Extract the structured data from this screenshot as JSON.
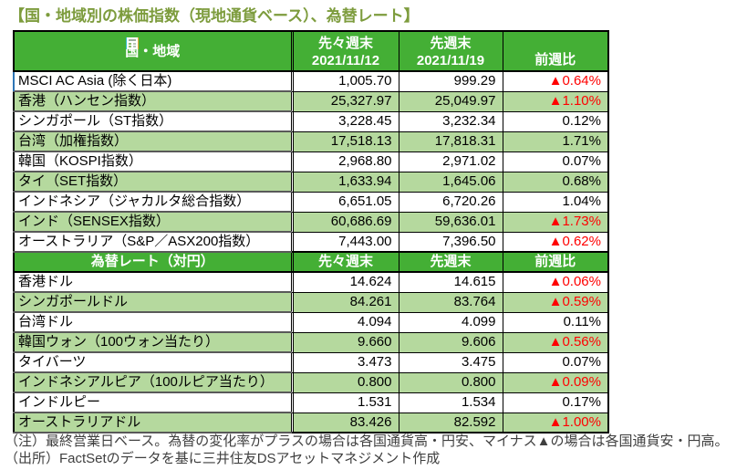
{
  "title": "【国・地域別の株価指数（現地通貨ベース）、為替レート】",
  "colors": {
    "header_green": "#44af35",
    "row_alt_green": "#b5d99e",
    "negative_red": "#ff0000",
    "title_olive": "#7d9c3d",
    "name_divider_gray": "#595959",
    "selection_blue": "#2e75b6"
  },
  "stock_table": {
    "headers": {
      "col1": "国・地域",
      "col2_line1": "先々週末",
      "col2_line2": "2021/11/12",
      "col3_line1": "先週末",
      "col3_line2": "2021/11/19",
      "col4": "前週比"
    },
    "rows": [
      {
        "name": "MSCI AC Asia (除く日本)",
        "prev": "1,005.70",
        "last": "999.29",
        "wow": "▲0.64%",
        "negative": true
      },
      {
        "name": "香港（ハンセン指数）",
        "prev": "25,327.97",
        "last": "25,049.97",
        "wow": "▲1.10%",
        "negative": true
      },
      {
        "name": "シンガポール（ST指数）",
        "prev": "3,228.45",
        "last": "3,232.34",
        "wow": "0.12%",
        "negative": false
      },
      {
        "name": "台湾（加権指数）",
        "prev": "17,518.13",
        "last": "17,818.31",
        "wow": "1.71%",
        "negative": false
      },
      {
        "name": "韓国（KOSPI指数）",
        "prev": "2,968.80",
        "last": "2,971.02",
        "wow": "0.07%",
        "negative": false
      },
      {
        "name": "タイ（SET指数）",
        "prev": "1,633.94",
        "last": "1,645.06",
        "wow": "0.68%",
        "negative": false
      },
      {
        "name": "インドネシア（ジャカルタ総合指数）",
        "prev": "6,651.05",
        "last": "6,720.26",
        "wow": "1.04%",
        "negative": false
      },
      {
        "name": "インド（SENSEX指数）",
        "prev": "60,686.69",
        "last": "59,636.01",
        "wow": "▲1.73%",
        "negative": true
      },
      {
        "name": "オーストラリア（S&P／ASX200指数）",
        "prev": "7,443.00",
        "last": "7,396.50",
        "wow": "▲0.62%",
        "negative": true
      }
    ]
  },
  "fx_table": {
    "headers": {
      "col1": "為替レート（対円）",
      "col2": "先々週末",
      "col3": "先週末",
      "col4": "前週比"
    },
    "rows": [
      {
        "name": "香港ドル",
        "prev": "14.624",
        "last": "14.615",
        "wow": "▲0.06%",
        "negative": true
      },
      {
        "name": "シンガポールドル",
        "prev": "84.261",
        "last": "83.764",
        "wow": "▲0.59%",
        "negative": true
      },
      {
        "name": "台湾ドル",
        "prev": "4.094",
        "last": "4.099",
        "wow": "0.11%",
        "negative": false
      },
      {
        "name": "韓国ウォン（100ウォン当たり）",
        "prev": "9.660",
        "last": "9.606",
        "wow": "▲0.56%",
        "negative": true
      },
      {
        "name": "タイバーツ",
        "prev": "3.473",
        "last": "3.475",
        "wow": "0.07%",
        "negative": false
      },
      {
        "name": "インドネシアルピア（100ルピア当たり）",
        "prev": "0.800",
        "last": "0.800",
        "wow": "▲0.09%",
        "negative": true
      },
      {
        "name": "インドルピー",
        "prev": "1.531",
        "last": "1.534",
        "wow": "0.17%",
        "negative": false
      },
      {
        "name": "オーストラリアドル",
        "prev": "83.426",
        "last": "82.592",
        "wow": "▲1.00%",
        "negative": true
      }
    ]
  },
  "notes": {
    "note1": "（注）最終営業日ベース。為替の変化率がプラスの場合は各国通貨高・円安、マイナス▲の場合は各国通貨安・円高。",
    "note2": "（出所）FactSetのデータを基に三井住友DSアセットマネジメント作成"
  }
}
